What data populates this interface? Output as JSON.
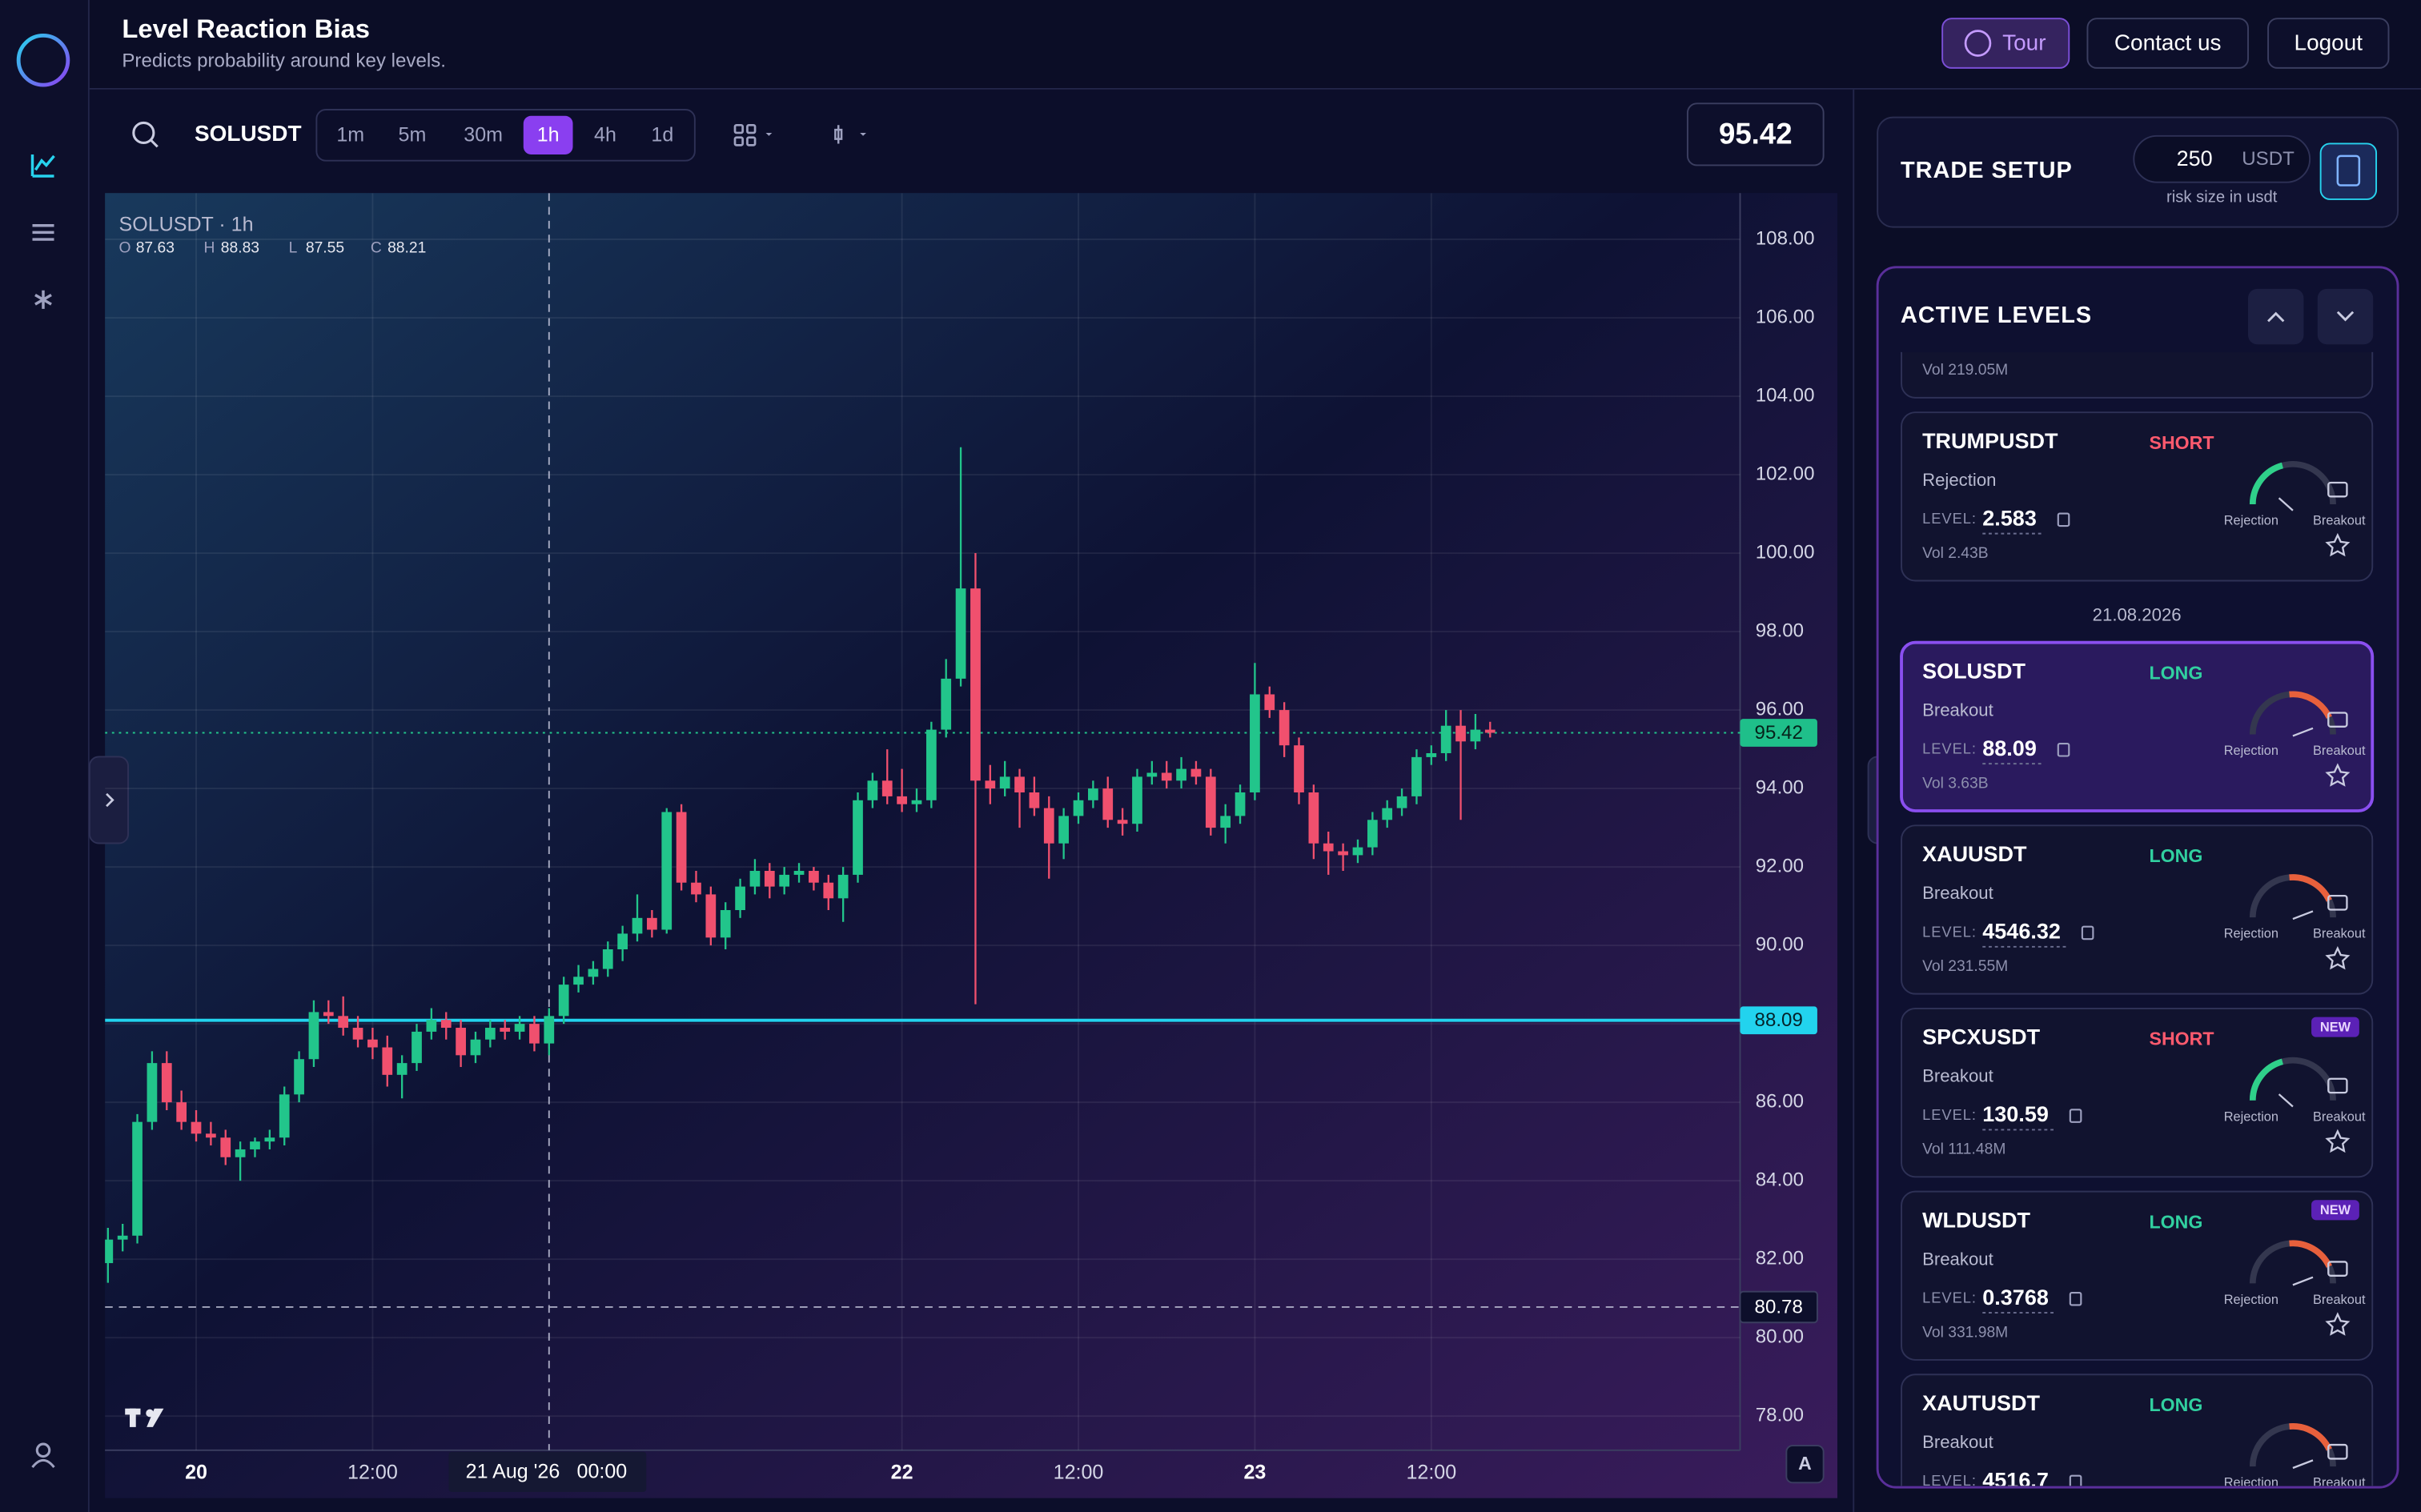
{
  "header": {
    "title": "Level Reaction Bias",
    "subtitle": "Predicts probability around key levels.",
    "buttons": [
      "Tour",
      "Contact us",
      "Logout"
    ]
  },
  "toolbar": {
    "symbol": "SOLUSDT",
    "timeframes": [
      "1m",
      "5m",
      "30m",
      "1h",
      "4h",
      "1d"
    ],
    "active": "1h",
    "price": "95.42"
  },
  "chart_data": {
    "type": "candlestick",
    "title": "SOLUSDT · 1h",
    "ohlc_legend": [
      {
        "label": "O",
        "value": 87.63
      },
      {
        "label": "H",
        "value": 88.83
      },
      {
        "label": "L",
        "value": 87.55
      },
      {
        "label": "C",
        "value": 88.21
      }
    ],
    "up_color": "#22c58b",
    "down_color": "#f0506e",
    "xlim": [
      -0.2,
      111
    ],
    "ylim": [
      77.13,
      109.18
    ],
    "yticks": [
      {
        "value": 108,
        "label": "108.00"
      },
      {
        "value": 106,
        "label": "106.00"
      },
      {
        "value": 104,
        "label": "104.00"
      },
      {
        "value": 102,
        "label": "102.00"
      },
      {
        "value": 100,
        "label": "100.00"
      },
      {
        "value": 98,
        "label": "98.00"
      },
      {
        "value": 96,
        "label": "96.00"
      },
      {
        "value": 94,
        "label": "94.00"
      },
      {
        "value": 92,
        "label": "92.00"
      },
      {
        "value": 90,
        "label": "90.00"
      },
      {
        "value": 88,
        "label": "88.00"
      },
      {
        "value": 86,
        "label": "86.00"
      },
      {
        "value": 84,
        "label": "84.00"
      },
      {
        "value": 82,
        "label": "82.00"
      },
      {
        "value": 80,
        "label": "80.00"
      },
      {
        "value": 78,
        "label": "78.00"
      }
    ],
    "xticks": [
      {
        "value": 6,
        "label": "20"
      },
      {
        "value": 18,
        "label": "12:00"
      },
      {
        "value": 54,
        "label": "22"
      },
      {
        "value": 66,
        "label": "12:00"
      },
      {
        "value": 78,
        "label": "23"
      },
      {
        "value": 90,
        "label": "12:00"
      }
    ],
    "grid": true,
    "current_price": 95.42,
    "level": 88.09,
    "crosshair": {
      "x": 30,
      "y": 80.78,
      "x_label": "21 Aug '26",
      "x_time": "00:00"
    },
    "candles": [
      [
        81.9,
        82.8,
        81.4,
        82.5
      ],
      [
        82.5,
        82.9,
        82.2,
        82.6
      ],
      [
        82.6,
        85.7,
        82.4,
        85.5
      ],
      [
        85.5,
        87.3,
        85.3,
        87.0
      ],
      [
        87.0,
        87.3,
        85.8,
        86.0
      ],
      [
        86.0,
        86.3,
        85.3,
        85.5
      ],
      [
        85.5,
        85.8,
        85.0,
        85.2
      ],
      [
        85.2,
        85.5,
        84.9,
        85.1
      ],
      [
        85.1,
        85.3,
        84.4,
        84.6
      ],
      [
        84.6,
        85.0,
        84.0,
        84.8
      ],
      [
        84.8,
        85.1,
        84.6,
        85.0
      ],
      [
        85.0,
        85.3,
        84.8,
        85.1
      ],
      [
        85.1,
        86.4,
        84.9,
        86.2
      ],
      [
        86.2,
        87.3,
        86.0,
        87.1
      ],
      [
        87.1,
        88.6,
        86.9,
        88.3
      ],
      [
        88.3,
        88.6,
        88.0,
        88.2
      ],
      [
        88.2,
        88.7,
        87.7,
        87.9
      ],
      [
        87.9,
        88.2,
        87.4,
        87.6
      ],
      [
        87.6,
        87.9,
        87.1,
        87.4
      ],
      [
        87.4,
        87.7,
        86.4,
        86.7
      ],
      [
        86.7,
        87.2,
        86.1,
        87.0
      ],
      [
        87.0,
        88.0,
        86.8,
        87.8
      ],
      [
        87.8,
        88.4,
        87.6,
        88.1
      ],
      [
        88.1,
        88.3,
        87.6,
        87.9
      ],
      [
        87.9,
        88.1,
        86.9,
        87.2
      ],
      [
        87.2,
        87.8,
        87.0,
        87.6
      ],
      [
        87.6,
        88.1,
        87.4,
        87.9
      ],
      [
        87.9,
        88.1,
        87.6,
        87.8
      ],
      [
        87.8,
        88.2,
        87.6,
        88.0
      ],
      [
        88.0,
        88.2,
        87.3,
        87.5
      ],
      [
        87.5,
        88.4,
        87.2,
        88.2
      ],
      [
        88.2,
        89.2,
        88.0,
        89.0
      ],
      [
        89.0,
        89.5,
        88.8,
        89.2
      ],
      [
        89.2,
        89.6,
        89.0,
        89.4
      ],
      [
        89.4,
        90.1,
        89.2,
        89.9
      ],
      [
        89.9,
        90.5,
        89.6,
        90.3
      ],
      [
        90.3,
        91.3,
        90.1,
        90.7
      ],
      [
        90.7,
        90.9,
        90.2,
        90.4
      ],
      [
        90.4,
        93.5,
        90.3,
        93.4
      ],
      [
        93.4,
        93.6,
        91.4,
        91.6
      ],
      [
        91.6,
        91.9,
        91.1,
        91.3
      ],
      [
        91.3,
        91.5,
        90.0,
        90.2
      ],
      [
        90.2,
        91.1,
        89.9,
        90.9
      ],
      [
        90.9,
        91.7,
        90.7,
        91.5
      ],
      [
        91.5,
        92.2,
        91.3,
        91.9
      ],
      [
        91.9,
        92.1,
        91.2,
        91.5
      ],
      [
        91.5,
        92.0,
        91.3,
        91.8
      ],
      [
        91.8,
        92.1,
        91.6,
        91.9
      ],
      [
        91.9,
        92.0,
        91.4,
        91.6
      ],
      [
        91.6,
        91.8,
        90.9,
        91.2
      ],
      [
        91.2,
        92.0,
        90.6,
        91.8
      ],
      [
        91.8,
        93.9,
        91.6,
        93.7
      ],
      [
        93.7,
        94.4,
        93.5,
        94.2
      ],
      [
        94.2,
        95.0,
        93.6,
        93.8
      ],
      [
        93.8,
        94.5,
        93.4,
        93.6
      ],
      [
        93.6,
        94.0,
        93.4,
        93.7
      ],
      [
        93.7,
        95.7,
        93.5,
        95.5
      ],
      [
        95.5,
        97.3,
        95.3,
        96.8
      ],
      [
        96.8,
        102.7,
        96.6,
        99.1
      ],
      [
        99.1,
        100.0,
        88.5,
        94.2
      ],
      [
        94.2,
        94.6,
        93.6,
        94.0
      ],
      [
        94.0,
        94.7,
        93.8,
        94.3
      ],
      [
        94.3,
        94.5,
        93.0,
        93.9
      ],
      [
        93.9,
        94.3,
        93.3,
        93.5
      ],
      [
        93.5,
        93.8,
        91.7,
        92.6
      ],
      [
        92.6,
        93.5,
        92.2,
        93.3
      ],
      [
        93.3,
        93.9,
        93.1,
        93.7
      ],
      [
        93.7,
        94.2,
        93.5,
        94.0
      ],
      [
        94.0,
        94.3,
        93.0,
        93.2
      ],
      [
        93.2,
        93.5,
        92.8,
        93.1
      ],
      [
        93.1,
        94.5,
        92.9,
        94.3
      ],
      [
        94.3,
        94.7,
        94.1,
        94.4
      ],
      [
        94.4,
        94.7,
        94.0,
        94.2
      ],
      [
        94.2,
        94.8,
        94.0,
        94.5
      ],
      [
        94.5,
        94.7,
        94.1,
        94.3
      ],
      [
        94.3,
        94.5,
        92.8,
        93.0
      ],
      [
        93.0,
        93.6,
        92.6,
        93.3
      ],
      [
        93.3,
        94.1,
        93.1,
        93.9
      ],
      [
        93.9,
        97.2,
        93.7,
        96.4
      ],
      [
        96.4,
        96.6,
        95.8,
        96.0
      ],
      [
        96.0,
        96.2,
        94.8,
        95.1
      ],
      [
        95.1,
        95.3,
        93.6,
        93.9
      ],
      [
        93.9,
        94.1,
        92.2,
        92.6
      ],
      [
        92.6,
        92.9,
        91.8,
        92.4
      ],
      [
        92.4,
        92.6,
        91.9,
        92.3
      ],
      [
        92.3,
        92.7,
        92.1,
        92.5
      ],
      [
        92.5,
        93.4,
        92.3,
        93.2
      ],
      [
        93.2,
        93.7,
        93.0,
        93.5
      ],
      [
        93.5,
        94.0,
        93.3,
        93.8
      ],
      [
        93.8,
        95.0,
        93.6,
        94.8
      ],
      [
        94.8,
        95.1,
        94.6,
        94.9
      ],
      [
        94.9,
        96.0,
        94.7,
        95.6
      ],
      [
        95.6,
        96.0,
        93.2,
        95.2
      ],
      [
        95.2,
        95.9,
        95.0,
        95.5
      ],
      [
        95.5,
        95.7,
        95.3,
        95.42
      ]
    ]
  },
  "trade_setup": {
    "title": "TRADE SETUP",
    "amount": "250",
    "unit": "USDT",
    "hint": "risk size in usdt"
  },
  "levels": {
    "title": "ACTIVE LEVELS",
    "level_label": "LEVEL:",
    "gauge_labels": [
      "Rejection",
      "Breakout"
    ],
    "groups": [
      {
        "cards": [
          {
            "vol": "Vol 219.05M"
          },
          {
            "symbol": "TRUMPUSDT",
            "side": "SHORT",
            "type": "Rejection",
            "level": "2.583",
            "vol": "Vol 2.43B"
          }
        ]
      },
      {
        "date": "21.08.2026",
        "cards": [
          {
            "symbol": "SOLUSDT",
            "side": "LONG",
            "type": "Breakout",
            "level": "88.09",
            "vol": "Vol 3.63B",
            "selected": true
          },
          {
            "symbol": "XAUUSDT",
            "side": "LONG",
            "type": "Breakout",
            "level": "4546.32",
            "vol": "Vol 231.55M"
          },
          {
            "symbol": "SPCXUSDT",
            "side": "SHORT",
            "badge": "NEW",
            "type": "Breakout",
            "level": "130.59",
            "vol": "Vol 111.48M"
          },
          {
            "symbol": "WLDUSDT",
            "side": "LONG",
            "badge": "NEW",
            "type": "Breakout",
            "level": "0.3768",
            "vol": "Vol 331.98M"
          },
          {
            "symbol": "XAUTUSDT",
            "side": "LONG",
            "type": "Breakout",
            "level": "4516.7"
          }
        ]
      }
    ]
  }
}
